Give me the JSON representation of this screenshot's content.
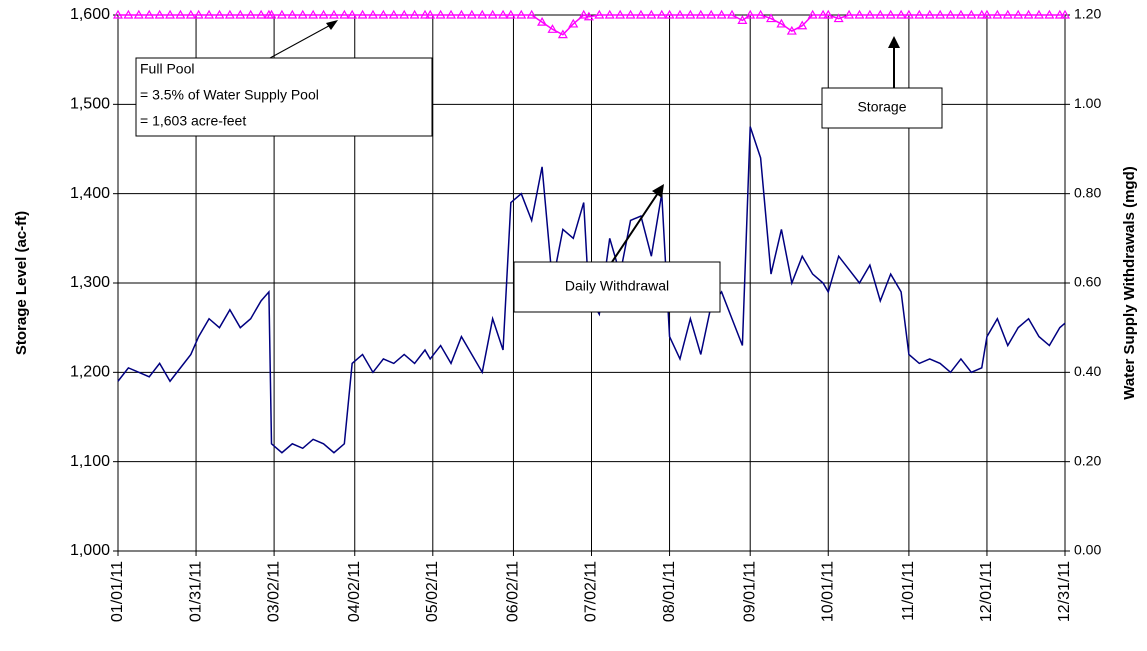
{
  "chart_data": {
    "type": "line",
    "y_label": "Storage Level (ac-ft)",
    "y2_label": "Water Supply Withdrawals (mgd)",
    "annotations": {
      "full_pool": [
        "Full Pool",
        "= 3.5% of  Water Supply Pool",
        "= 1,603 acre-feet"
      ],
      "storage": "Storage",
      "withdrawal": "Daily Withdrawal"
    },
    "xlim": [
      "01/01/11",
      "12/31/11"
    ],
    "xticks": [
      "01/01/11",
      "01/31/11",
      "03/02/11",
      "04/02/11",
      "05/02/11",
      "06/02/11",
      "07/02/11",
      "08/01/11",
      "09/01/11",
      "10/01/11",
      "11/01/11",
      "12/01/11",
      "12/31/11"
    ],
    "ylim": [
      1000,
      1600
    ],
    "yticks": [
      {
        "value": 1000,
        "label": "1,000"
      },
      {
        "value": 1100,
        "label": "1,100"
      },
      {
        "value": 1200,
        "label": "1,200"
      },
      {
        "value": 1300,
        "label": "1,300"
      },
      {
        "value": 1400,
        "label": "1,400"
      },
      {
        "value": 1500,
        "label": "1,500"
      },
      {
        "value": 1600,
        "label": "1,600"
      }
    ],
    "y2lim": [
      0,
      1.2
    ],
    "y2ticks": [
      {
        "value": 0,
        "label": "0.00"
      },
      {
        "value": 0.2,
        "label": "0.20"
      },
      {
        "value": 0.4,
        "label": "0.40"
      },
      {
        "value": 0.6,
        "label": "0.60"
      },
      {
        "value": 0.8,
        "label": "0.80"
      },
      {
        "value": 1,
        "label": "1.00"
      },
      {
        "value": 1.2,
        "label": "1.20"
      }
    ],
    "grid": true,
    "x": [
      "01/01/11",
      "01/05/11",
      "01/09/11",
      "01/13/11",
      "01/17/11",
      "01/21/11",
      "01/25/11",
      "01/29/11",
      "02/01/11",
      "02/05/11",
      "02/09/11",
      "02/13/11",
      "02/17/11",
      "02/21/11",
      "02/25/11",
      "02/28/11",
      "03/01/11",
      "03/05/11",
      "03/09/11",
      "03/13/11",
      "03/17/11",
      "03/21/11",
      "03/25/11",
      "03/29/11",
      "04/01/11",
      "04/05/11",
      "04/09/11",
      "04/13/11",
      "04/17/11",
      "04/21/11",
      "04/25/11",
      "04/29/11",
      "05/01/11",
      "05/05/11",
      "05/09/11",
      "05/13/11",
      "05/17/11",
      "05/21/11",
      "05/25/11",
      "05/29/11",
      "06/01/11",
      "06/05/11",
      "06/09/11",
      "06/13/11",
      "06/17/11",
      "06/21/11",
      "06/25/11",
      "06/29/11",
      "07/01/11",
      "07/05/11",
      "07/09/11",
      "07/13/11",
      "07/17/11",
      "07/21/11",
      "07/25/11",
      "07/29/11",
      "08/01/11",
      "08/05/11",
      "08/09/11",
      "08/13/11",
      "08/17/11",
      "08/21/11",
      "08/25/11",
      "08/29/11",
      "09/01/11",
      "09/05/11",
      "09/09/11",
      "09/13/11",
      "09/17/11",
      "09/21/11",
      "09/25/11",
      "09/29/11",
      "10/01/11",
      "10/05/11",
      "10/09/11",
      "10/13/11",
      "10/17/11",
      "10/21/11",
      "10/25/11",
      "10/29/11",
      "11/01/11",
      "11/05/11",
      "11/09/11",
      "11/13/11",
      "11/17/11",
      "11/21/11",
      "11/25/11",
      "11/29/11",
      "12/01/11",
      "12/05/11",
      "12/09/11",
      "12/13/11",
      "12/17/11",
      "12/21/11",
      "12/25/11",
      "12/29/11",
      "12/31/11"
    ],
    "series": [
      {
        "name": "Storage",
        "color": "#ff00ff",
        "axis": "y",
        "values": [
          1600,
          1600,
          1600,
          1600,
          1600,
          1600,
          1600,
          1600,
          1600,
          1600,
          1600,
          1600,
          1600,
          1600,
          1600,
          1600,
          1600,
          1600,
          1600,
          1600,
          1600,
          1600,
          1600,
          1600,
          1600,
          1600,
          1600,
          1600,
          1600,
          1600,
          1600,
          1600,
          1600,
          1600,
          1600,
          1600,
          1600,
          1600,
          1600,
          1600,
          1600,
          1600,
          1600,
          1592,
          1584,
          1578,
          1590,
          1600,
          1598,
          1600,
          1600,
          1600,
          1600,
          1600,
          1600,
          1600,
          1600,
          1600,
          1600,
          1600,
          1600,
          1600,
          1600,
          1594,
          1600,
          1600,
          1596,
          1590,
          1582,
          1588,
          1600,
          1600,
          1600,
          1596,
          1600,
          1600,
          1600,
          1600,
          1600,
          1600,
          1600,
          1600,
          1600,
          1600,
          1600,
          1600,
          1600,
          1600,
          1600,
          1600,
          1600,
          1600,
          1600,
          1600,
          1600,
          1600,
          1600
        ]
      },
      {
        "name": "Daily Withdrawal",
        "color": "#000080",
        "axis": "y2",
        "values": [
          0.38,
          0.41,
          0.4,
          0.39,
          0.42,
          0.38,
          0.41,
          0.44,
          0.48,
          0.52,
          0.5,
          0.54,
          0.5,
          0.52,
          0.56,
          0.58,
          0.24,
          0.22,
          0.24,
          0.23,
          0.25,
          0.24,
          0.22,
          0.24,
          0.42,
          0.44,
          0.4,
          0.43,
          0.42,
          0.44,
          0.42,
          0.45,
          0.43,
          0.46,
          0.42,
          0.48,
          0.44,
          0.4,
          0.52,
          0.45,
          0.78,
          0.8,
          0.74,
          0.86,
          0.6,
          0.72,
          0.7,
          0.78,
          0.57,
          0.53,
          0.7,
          0.62,
          0.74,
          0.75,
          0.66,
          0.8,
          0.48,
          0.43,
          0.52,
          0.44,
          0.55,
          0.58,
          0.52,
          0.46,
          0.95,
          0.88,
          0.62,
          0.72,
          0.6,
          0.66,
          0.62,
          0.6,
          0.58,
          0.66,
          0.63,
          0.6,
          0.64,
          0.56,
          0.62,
          0.58,
          0.44,
          0.42,
          0.43,
          0.42,
          0.4,
          0.43,
          0.4,
          0.41,
          0.48,
          0.52,
          0.46,
          0.5,
          0.52,
          0.48,
          0.46,
          0.5,
          0.51
        ]
      }
    ]
  }
}
